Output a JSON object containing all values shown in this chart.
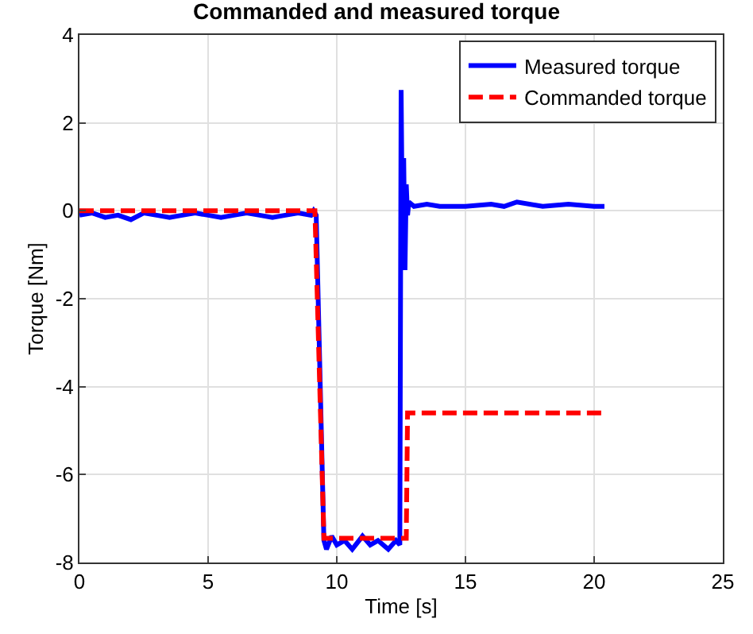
{
  "chart_data": {
    "type": "line",
    "title": "Commanded and measured torque",
    "xlabel": "Time [s]",
    "ylabel": "Torque [Nm]",
    "xlim": [
      0,
      25
    ],
    "xticks": [
      0,
      5,
      10,
      15,
      20,
      25
    ],
    "ylim": [
      -8,
      4
    ],
    "yticks": [
      -8,
      -6,
      -4,
      -2,
      0,
      2,
      4
    ],
    "grid": true,
    "legend": "top right",
    "series": [
      {
        "name": "Measured torque",
        "color": "#0000ff",
        "line_style": "solid",
        "x": [
          0,
          0.5,
          1,
          1.5,
          2,
          2.5,
          3,
          3.5,
          4,
          4.5,
          5,
          5.5,
          6,
          6.5,
          7,
          7.5,
          8,
          8.5,
          9,
          9.1,
          9.2,
          9.5,
          9.6,
          9.8,
          10,
          10.3,
          10.6,
          11,
          11.3,
          11.6,
          12,
          12.3,
          12.45,
          12.5,
          12.55,
          12.6,
          12.65,
          12.7,
          12.75,
          12.8,
          13,
          13.5,
          14,
          15,
          16,
          16.5,
          17,
          18,
          19,
          20,
          20.4
        ],
        "values": [
          -0.1,
          -0.05,
          -0.15,
          -0.1,
          -0.2,
          -0.05,
          -0.1,
          -0.15,
          -0.1,
          -0.05,
          -0.1,
          -0.15,
          -0.1,
          -0.05,
          -0.1,
          -0.15,
          -0.1,
          -0.05,
          -0.1,
          0.0,
          -0.1,
          -7.5,
          -7.7,
          -7.4,
          -7.6,
          -7.5,
          -7.7,
          -7.4,
          -7.6,
          -7.5,
          -7.7,
          -7.5,
          -7.6,
          2.75,
          -0.5,
          1.2,
          -1.35,
          0.6,
          -0.1,
          0.2,
          0.1,
          0.15,
          0.1,
          0.1,
          0.15,
          0.1,
          0.2,
          0.1,
          0.15,
          0.1,
          0.1
        ]
      },
      {
        "name": "Commanded torque",
        "color": "#ff0000",
        "line_style": "dashed",
        "x": [
          0,
          9.15,
          9.5,
          12.7,
          12.75,
          20.4
        ],
        "values": [
          0,
          0,
          -7.45,
          -7.45,
          -4.6,
          -4.6
        ]
      }
    ]
  }
}
